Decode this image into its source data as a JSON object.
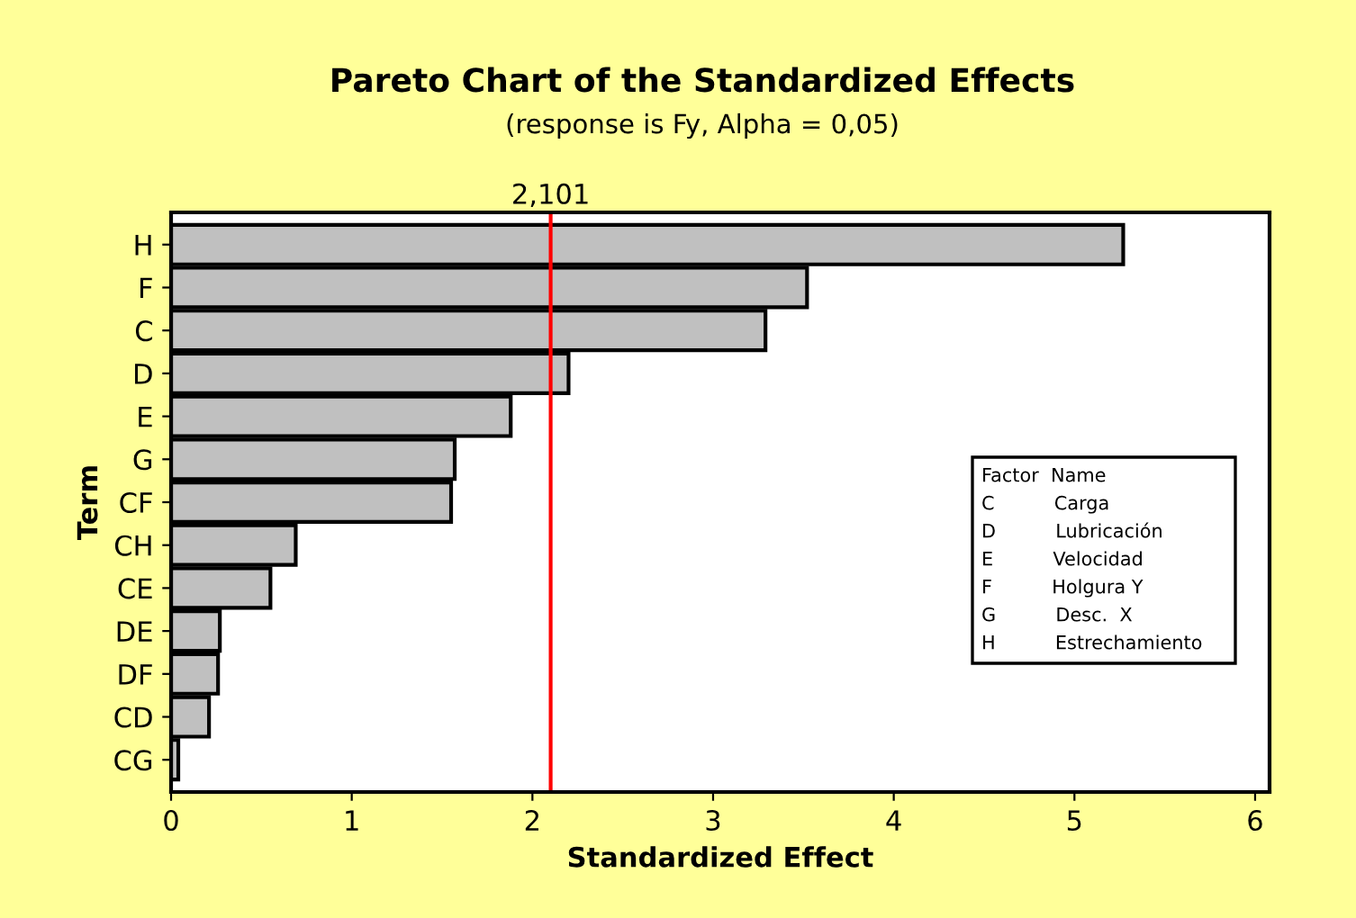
{
  "chart_data": {
    "type": "bar",
    "orientation": "horizontal",
    "title": "Pareto Chart of the Standardized Effects",
    "subtitle": "(response is Fy, Alpha = 0,05)",
    "xlabel": "Standardized Effect",
    "ylabel": "Term",
    "categories": [
      "H",
      "F",
      "C",
      "D",
      "E",
      "G",
      "CF",
      "CH",
      "CE",
      "DE",
      "DF",
      "CD",
      "CG"
    ],
    "values": [
      5.27,
      3.52,
      3.29,
      2.2,
      1.88,
      1.57,
      1.55,
      0.69,
      0.55,
      0.27,
      0.26,
      0.21,
      0.04
    ],
    "color": "#c0c0c0",
    "xlim": [
      0,
      6.08
    ],
    "xticks": [
      0,
      1,
      2,
      3,
      4,
      5,
      6
    ],
    "ref_lines": [
      {
        "axis": "x",
        "value": 2.101,
        "label": "2,101",
        "color": "#ff0000"
      }
    ],
    "annotations": [
      "Factor  Name",
      "C          Carga",
      "D          Lubricación",
      "E          Velocidad",
      "F          Holgura Y",
      "G          Desc.  X",
      "H          Estrechamiento"
    ],
    "grid": false,
    "legend": false
  }
}
